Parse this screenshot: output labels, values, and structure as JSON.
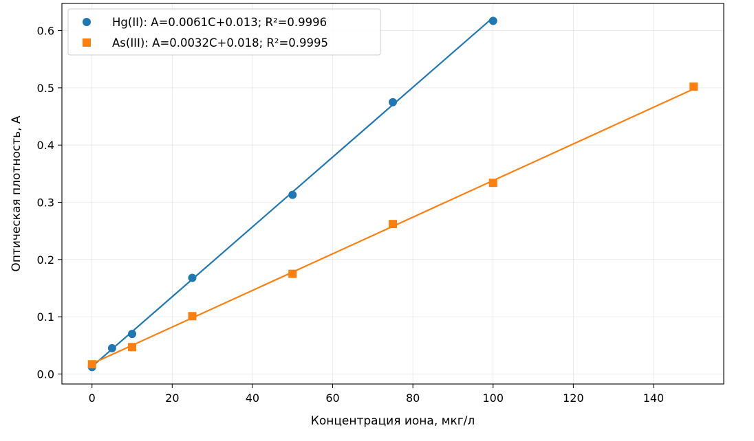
{
  "chart_data": {
    "type": "scatter",
    "xlabel": "Концентрация иона, мкг/л",
    "ylabel": "Оптическая плотность, А",
    "xlim": [
      -7.5,
      157.5
    ],
    "ylim": [
      -0.0175,
      0.6475
    ],
    "xticks": [
      0,
      20,
      40,
      60,
      80,
      100,
      120,
      140
    ],
    "yticks": [
      0.0,
      0.1,
      0.2,
      0.3,
      0.4,
      0.5,
      0.6
    ],
    "xtick_labels": [
      "0",
      "20",
      "40",
      "60",
      "80",
      "100",
      "120",
      "140"
    ],
    "ytick_labels": [
      "0.0",
      "0.1",
      "0.2",
      "0.3",
      "0.4",
      "0.5",
      "0.6"
    ],
    "grid": true,
    "legend_position": "top-left",
    "series": [
      {
        "name": "Hg(II): A=0.0061C+0.013; R²=0.9996",
        "marker": "circle",
        "color": "#1f77b4",
        "x": [
          0,
          5,
          10,
          25,
          50,
          75,
          100
        ],
        "y": [
          0.012,
          0.045,
          0.07,
          0.168,
          0.313,
          0.475,
          0.617
        ],
        "fit": {
          "slope": 0.0061,
          "intercept": 0.013,
          "x_range": [
            0,
            100
          ]
        }
      },
      {
        "name": "As(III): A=0.0032C+0.018; R²=0.9995",
        "marker": "square",
        "color": "#ff7f0e",
        "x": [
          0,
          10,
          25,
          50,
          75,
          100,
          150
        ],
        "y": [
          0.017,
          0.047,
          0.101,
          0.175,
          0.262,
          0.334,
          0.502
        ],
        "fit": {
          "slope": 0.0032,
          "intercept": 0.018,
          "x_range": [
            0,
            150
          ]
        }
      }
    ]
  }
}
